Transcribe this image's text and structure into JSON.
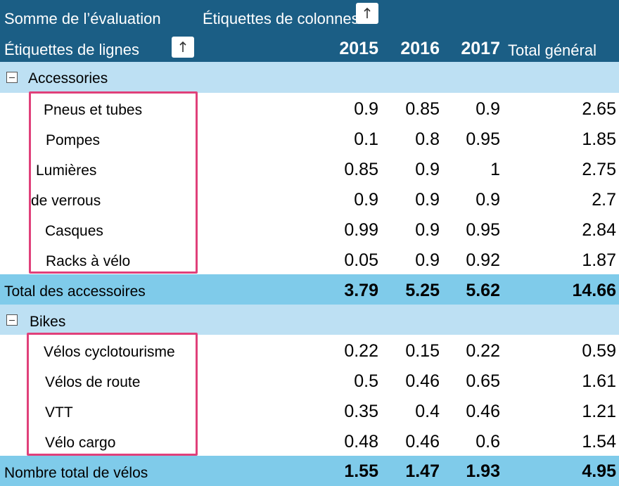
{
  "header": {
    "values_label": "Somme de l’évaluation",
    "column_labels": "Étiquettes de colonnes",
    "row_labels": "Étiquettes de lignes",
    "columns": [
      "2015",
      "2016",
      "2017",
      "Total général"
    ]
  },
  "groups": [
    {
      "name": "Accessories",
      "rows": [
        {
          "label": "Pneus et tubes",
          "values": [
            "0.9",
            "0.85",
            "0.9",
            "2.65"
          ]
        },
        {
          "label": "Pompes",
          "values": [
            "0.1",
            "0.8",
            "0.95",
            "1.85"
          ]
        },
        {
          "label": "Lumières",
          "values": [
            "0.85",
            "0.9",
            "1",
            "2.75"
          ]
        },
        {
          "label": "de verrous",
          "values": [
            "0.9",
            "0.9",
            "0.9",
            "2.7"
          ]
        },
        {
          "label": "Casques",
          "values": [
            "0.99",
            "0.9",
            "0.95",
            "2.84"
          ]
        },
        {
          "label": "Racks à vélo",
          "values": [
            "0.05",
            "0.9",
            "0.92",
            "1.87"
          ]
        }
      ],
      "total": {
        "label": "Total des accessoires",
        "values": [
          "3.79",
          "5.25",
          "5.62",
          "14.66"
        ]
      }
    },
    {
      "name": "Bikes",
      "rows": [
        {
          "label": "Vélos cyclotourisme",
          "values": [
            "0.22",
            "0.15",
            "0.22",
            "0.59"
          ]
        },
        {
          "label": "Vélos de route",
          "values": [
            "0.5",
            "0.46",
            "0.65",
            "1.61"
          ]
        },
        {
          "label": "VTT",
          "values": [
            "0.35",
            "0.4",
            "0.46",
            "1.21"
          ]
        },
        {
          "label": "Vélo cargo",
          "values": [
            "0.48",
            "0.46",
            "0.6",
            "1.54"
          ]
        }
      ],
      "total": {
        "label": "Nombre total de vélos",
        "values": [
          "1.55",
          "1.47",
          "1.93",
          "4.95"
        ]
      }
    }
  ],
  "colors": {
    "header_bg": "#1b5e85",
    "group_bg": "#bde0f3",
    "subtotal_bg": "#7fcbea",
    "highlight": "#e0407a"
  },
  "icons": {
    "sort": "sort-up-arrow-icon",
    "collapse": "collapse-minus-icon"
  }
}
